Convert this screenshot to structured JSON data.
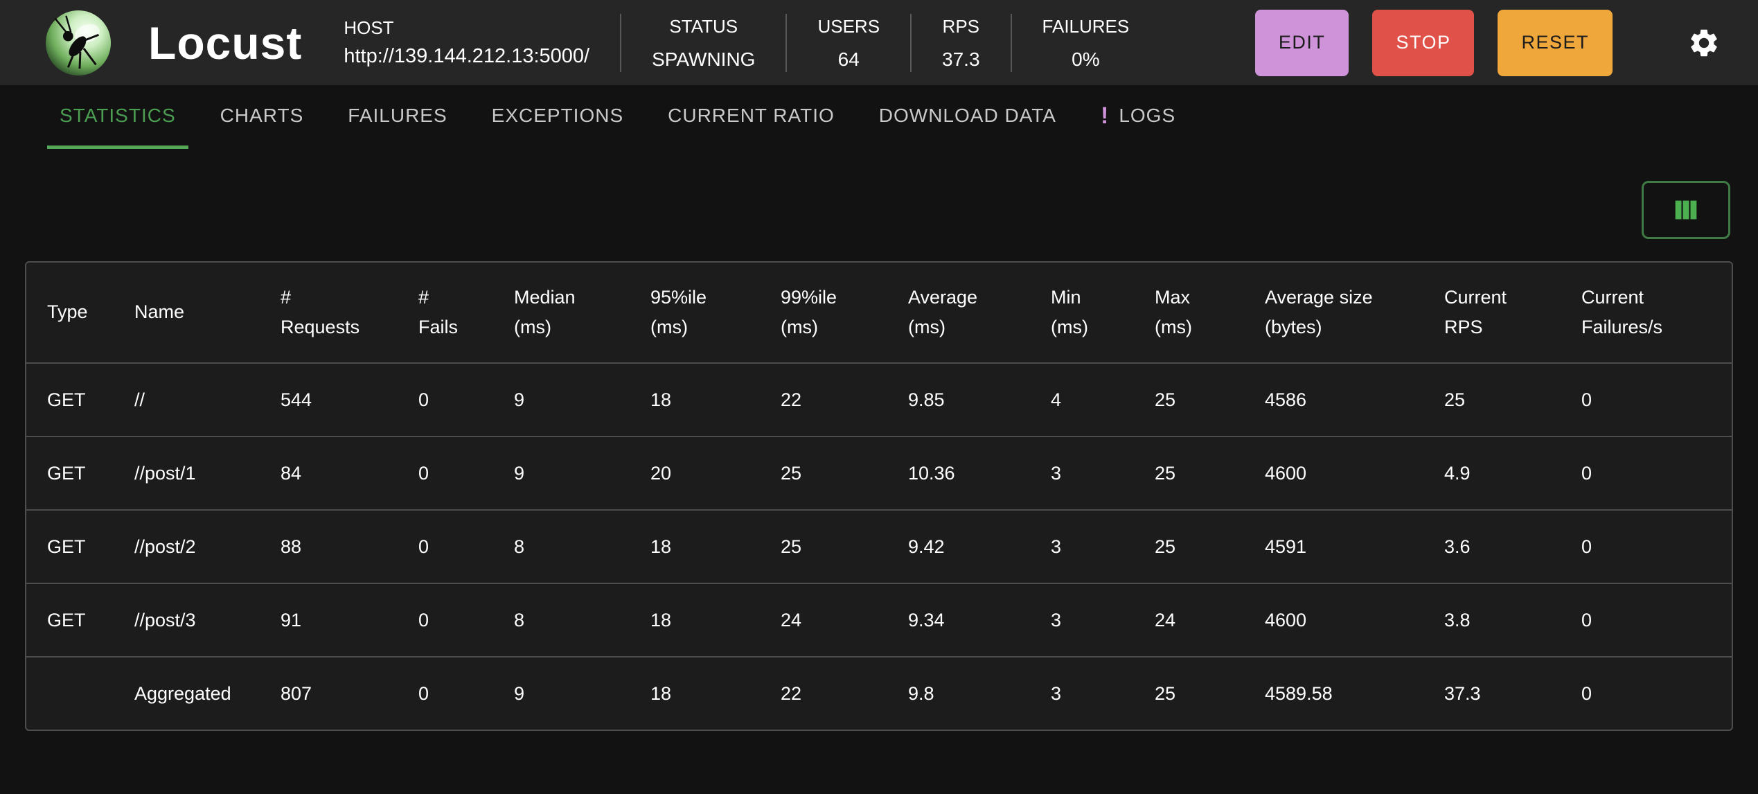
{
  "header": {
    "brand": "Locust",
    "host": {
      "label": "HOST",
      "url": "http://139.144.212.13:5000/"
    },
    "stats": [
      {
        "id": "status",
        "label": "STATUS",
        "value": "SPAWNING"
      },
      {
        "id": "users",
        "label": "USERS",
        "value": "64"
      },
      {
        "id": "rps",
        "label": "RPS",
        "value": "37.3"
      },
      {
        "id": "failures",
        "label": "FAILURES",
        "value": "0%"
      }
    ],
    "buttons": [
      {
        "id": "edit",
        "label": "EDIT",
        "bg": "#ce93d8",
        "fg": "#1c1c1c"
      },
      {
        "id": "stop",
        "label": "STOP",
        "bg": "#e0514a",
        "fg": "#ffffff"
      },
      {
        "id": "reset",
        "label": "RESET",
        "bg": "#efa73c",
        "fg": "#1c1c1c"
      }
    ],
    "icons": {
      "settings": "gear-icon",
      "brand": "locust-logo"
    }
  },
  "tabs": [
    {
      "label": "STATISTICS",
      "active": true
    },
    {
      "label": "CHARTS"
    },
    {
      "label": "FAILURES"
    },
    {
      "label": "EXCEPTIONS"
    },
    {
      "label": "CURRENT RATIO"
    },
    {
      "label": "DOWNLOAD DATA"
    },
    {
      "label": "LOGS",
      "badge": "!"
    }
  ],
  "toolbar": {
    "columns_icon": "columns-icon"
  },
  "table": {
    "columns": [
      "Type",
      "Name",
      "# Requests",
      "# Fails",
      "Median (ms)",
      "95%ile (ms)",
      "99%ile (ms)",
      "Average (ms)",
      "Min (ms)",
      "Max (ms)",
      "Average size (bytes)",
      "Current RPS",
      "Current Failures/s"
    ],
    "rows": [
      [
        "GET",
        "//",
        "544",
        "0",
        "9",
        "18",
        "22",
        "9.85",
        "4",
        "25",
        "4586",
        "25",
        "0"
      ],
      [
        "GET",
        "//post/1",
        "84",
        "0",
        "9",
        "20",
        "25",
        "10.36",
        "3",
        "25",
        "4600",
        "4.9",
        "0"
      ],
      [
        "GET",
        "//post/2",
        "88",
        "0",
        "8",
        "18",
        "25",
        "9.42",
        "3",
        "25",
        "4591",
        "3.6",
        "0"
      ],
      [
        "GET",
        "//post/3",
        "91",
        "0",
        "8",
        "18",
        "24",
        "9.34",
        "3",
        "24",
        "4600",
        "3.8",
        "0"
      ],
      [
        "",
        "Aggregated",
        "807",
        "0",
        "9",
        "18",
        "22",
        "9.8",
        "3",
        "25",
        "4589.58",
        "37.3",
        "0"
      ]
    ]
  },
  "colors": {
    "header_bg": "#262626",
    "page_bg": "#121212",
    "panel_bg": "#1c1c1c",
    "tab_active_green": "#4b9e52",
    "accent_green": "#4caf50",
    "badge_purple": "#ce93d8"
  }
}
